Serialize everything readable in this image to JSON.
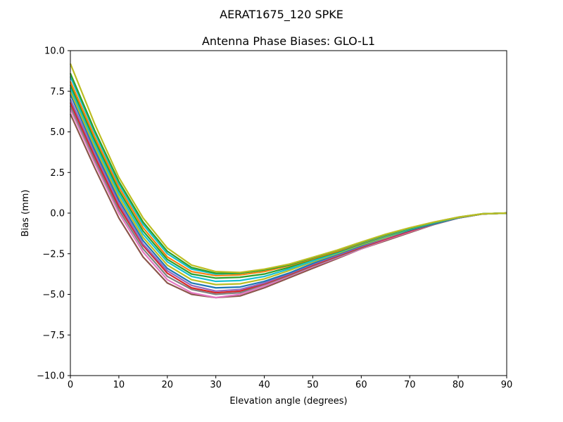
{
  "figure": {
    "suptitle": "AERAT1675_120   SPKE"
  },
  "chart_data": {
    "type": "line",
    "title": "Antenna Phase Biases: GLO-L1",
    "xlabel": "Elevation angle (degrees)",
    "ylabel": "Bias (mm)",
    "xlim": [
      0,
      90
    ],
    "ylim": [
      -10,
      10
    ],
    "xticks": [
      0,
      10,
      20,
      30,
      40,
      50,
      60,
      70,
      80,
      90
    ],
    "xtick_labels": [
      "0",
      "10",
      "20",
      "30",
      "40",
      "50",
      "60",
      "70",
      "80",
      "90"
    ],
    "yticks": [
      -10,
      -7.5,
      -5,
      -2.5,
      0,
      2.5,
      5,
      7.5,
      10
    ],
    "ytick_labels": [
      "−10.0",
      "−7.5",
      "−5.0",
      "−2.5",
      "0.0",
      "2.5",
      "5.0",
      "7.5",
      "10.0"
    ],
    "grid": false,
    "x": [
      0,
      5,
      10,
      15,
      20,
      25,
      30,
      35,
      40,
      45,
      50,
      55,
      60,
      65,
      70,
      75,
      80,
      85,
      90
    ],
    "series": [
      {
        "color": "#8c564b",
        "values": [
          6.1,
          2.8,
          -0.3,
          -2.7,
          -4.3,
          -5.0,
          -5.2,
          -5.1,
          -4.6,
          -4.0,
          -3.4,
          -2.8,
          -2.2,
          -1.7,
          -1.2,
          -0.7,
          -0.3,
          -0.05,
          0
        ]
      },
      {
        "color": "#e377c2",
        "values": [
          6.4,
          3.1,
          0.0,
          -2.4,
          -4.1,
          -4.9,
          -5.2,
          -5.0,
          -4.5,
          -3.9,
          -3.3,
          -2.75,
          -2.2,
          -1.65,
          -1.15,
          -0.7,
          -0.3,
          -0.05,
          0
        ]
      },
      {
        "color": "#7f7f7f",
        "values": [
          6.6,
          3.3,
          0.2,
          -2.2,
          -3.9,
          -4.7,
          -5.0,
          -4.9,
          -4.4,
          -3.85,
          -3.25,
          -2.7,
          -2.15,
          -1.6,
          -1.1,
          -0.7,
          -0.3,
          -0.05,
          0
        ]
      },
      {
        "color": "#d62728",
        "values": [
          6.8,
          3.5,
          0.4,
          -2.0,
          -3.7,
          -4.6,
          -4.9,
          -4.8,
          -4.35,
          -3.8,
          -3.2,
          -2.65,
          -2.1,
          -1.6,
          -1.1,
          -0.65,
          -0.3,
          -0.05,
          0
        ]
      },
      {
        "color": "#9467bd",
        "values": [
          7.0,
          3.7,
          0.6,
          -1.9,
          -3.55,
          -4.45,
          -4.8,
          -4.7,
          -4.3,
          -3.75,
          -3.15,
          -2.6,
          -2.05,
          -1.55,
          -1.05,
          -0.65,
          -0.3,
          -0.05,
          0
        ]
      },
      {
        "color": "#1f77b4",
        "values": [
          7.3,
          3.9,
          0.8,
          -1.7,
          -3.4,
          -4.3,
          -4.6,
          -4.55,
          -4.2,
          -3.7,
          -3.1,
          -2.55,
          -2.0,
          -1.5,
          -1.05,
          -0.65,
          -0.3,
          -0.05,
          0
        ]
      },
      {
        "color": "#bcbd22",
        "values": [
          7.5,
          4.1,
          1.0,
          -1.5,
          -3.2,
          -4.1,
          -4.4,
          -4.35,
          -4.05,
          -3.55,
          -3.0,
          -2.5,
          -1.95,
          -1.5,
          -1.0,
          -0.6,
          -0.28,
          -0.05,
          0
        ]
      },
      {
        "color": "#17becf",
        "values": [
          7.7,
          4.3,
          1.2,
          -1.3,
          -3.0,
          -3.9,
          -4.2,
          -4.15,
          -3.9,
          -3.45,
          -2.95,
          -2.45,
          -1.9,
          -1.45,
          -1.0,
          -0.6,
          -0.28,
          -0.05,
          0
        ]
      },
      {
        "color": "#2ca02c",
        "values": [
          7.9,
          4.5,
          1.4,
          -1.1,
          -2.85,
          -3.75,
          -4.0,
          -3.95,
          -3.75,
          -3.35,
          -2.85,
          -2.4,
          -1.88,
          -1.4,
          -0.98,
          -0.6,
          -0.27,
          -0.05,
          0
        ]
      },
      {
        "color": "#ff7f0e",
        "values": [
          8.1,
          4.7,
          1.6,
          -0.9,
          -2.7,
          -3.6,
          -3.85,
          -3.8,
          -3.6,
          -3.25,
          -2.8,
          -2.35,
          -1.85,
          -1.38,
          -0.95,
          -0.58,
          -0.27,
          -0.05,
          0
        ]
      },
      {
        "color": "#17becf",
        "values": [
          8.4,
          4.95,
          1.8,
          -0.7,
          -2.5,
          -3.45,
          -3.75,
          -3.7,
          -3.5,
          -3.2,
          -2.75,
          -2.3,
          -1.82,
          -1.35,
          -0.95,
          -0.58,
          -0.26,
          -0.04,
          0
        ]
      },
      {
        "color": "#2ca02c",
        "values": [
          8.6,
          5.1,
          1.95,
          -0.55,
          -2.35,
          -3.35,
          -3.7,
          -3.7,
          -3.5,
          -3.2,
          -2.75,
          -2.3,
          -1.8,
          -1.33,
          -0.92,
          -0.56,
          -0.25,
          -0.04,
          0
        ]
      },
      {
        "color": "#bcbd22",
        "values": [
          9.2,
          5.5,
          2.2,
          -0.3,
          -2.15,
          -3.2,
          -3.6,
          -3.65,
          -3.45,
          -3.15,
          -2.72,
          -2.28,
          -1.78,
          -1.3,
          -0.9,
          -0.55,
          -0.25,
          -0.04,
          0
        ]
      }
    ]
  }
}
